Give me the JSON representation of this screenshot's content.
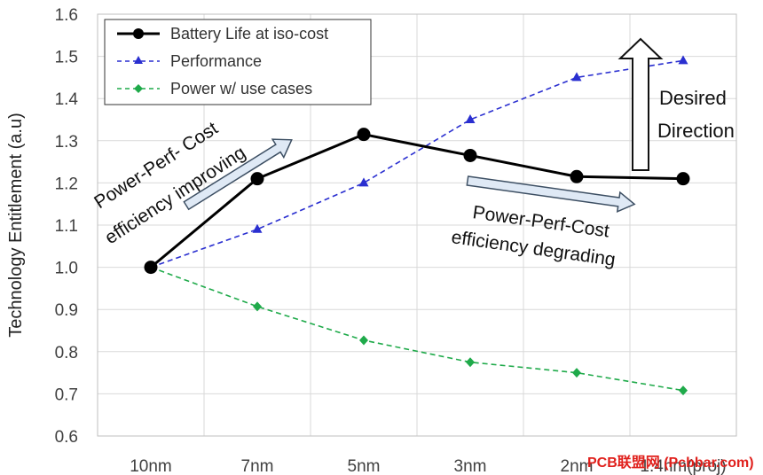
{
  "chart_data": {
    "type": "line",
    "title": "",
    "xlabel": "",
    "ylabel": "Technology Entitlement (a.u)",
    "categories": [
      "10nm",
      "7nm",
      "5nm",
      "3nm",
      "2nm",
      "1.4nm(proj)"
    ],
    "ylim": [
      0.6,
      1.6
    ],
    "yticks": [
      "0.6",
      "0.7",
      "0.8",
      "0.9",
      "1.0",
      "1.1",
      "1.2",
      "1.3",
      "1.4",
      "1.5",
      "1.6"
    ],
    "grid": true,
    "legend_position": "top-left",
    "series": [
      {
        "name": "Battery Life at iso-cost",
        "values": [
          1.0,
          1.21,
          1.315,
          1.265,
          1.215,
          1.21
        ],
        "color": "#000000",
        "style": "solid",
        "marker": "circle"
      },
      {
        "name": "Performance",
        "values": [
          1.0,
          1.09,
          1.2,
          1.35,
          1.45,
          1.49
        ],
        "color": "#2a2fd0",
        "style": "dashed",
        "marker": "triangle"
      },
      {
        "name": "Power w/ use cases",
        "values": [
          1.0,
          0.907,
          0.827,
          0.775,
          0.75,
          0.708
        ],
        "color": "#1faa4a",
        "style": "dashed",
        "marker": "diamond"
      }
    ],
    "annotations": {
      "improving_line1": "Power-Perf- Cost",
      "improving_line2": "efficiency improving",
      "degrading_line1": "Power-Perf-Cost",
      "degrading_line2": "efficiency degrading",
      "desired_line1": "Desired",
      "desired_line2": "Direction"
    }
  },
  "watermark": "PCB联盟网 (Pcbbar.com)"
}
